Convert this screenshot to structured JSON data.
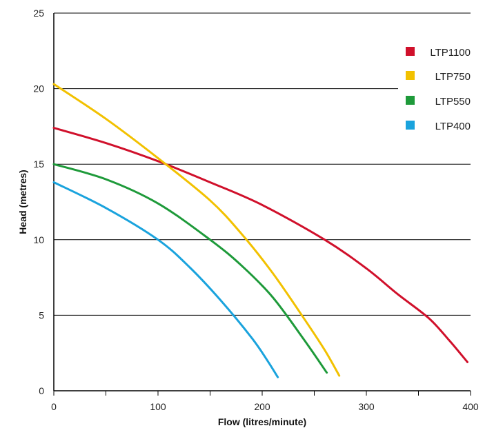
{
  "chart_data": {
    "type": "line",
    "title": "",
    "xlabel": "Flow (litres/minute)",
    "ylabel": "Head (metres)",
    "xlim": [
      0,
      400
    ],
    "ylim": [
      0,
      25
    ],
    "x_ticks": [
      0,
      100,
      200,
      300,
      400
    ],
    "x_minor_ticks": [
      50,
      150,
      250,
      350
    ],
    "y_ticks": [
      0,
      5,
      10,
      15,
      20,
      25
    ],
    "grid": "horizontal",
    "legend_position": "top-right",
    "series": [
      {
        "name": "LTP1100",
        "color": "#d0102b",
        "points": [
          [
            0,
            17.4
          ],
          [
            50,
            16.4
          ],
          [
            100,
            15.2
          ],
          [
            150,
            13.8
          ],
          [
            200,
            12.3
          ],
          [
            260,
            10.0
          ],
          [
            300,
            8.1
          ],
          [
            330,
            6.4
          ],
          [
            360,
            4.8
          ],
          [
            380,
            3.3
          ],
          [
            397,
            1.9
          ]
        ]
      },
      {
        "name": "LTP750",
        "color": "#f2c100",
        "points": [
          [
            0,
            20.3
          ],
          [
            50,
            18.0
          ],
          [
            100,
            15.4
          ],
          [
            150,
            12.6
          ],
          [
            180,
            10.4
          ],
          [
            210,
            7.8
          ],
          [
            240,
            4.8
          ],
          [
            260,
            2.7
          ],
          [
            274,
            1.0
          ]
        ]
      },
      {
        "name": "LTP550",
        "color": "#1e9a3a",
        "points": [
          [
            0,
            15.0
          ],
          [
            50,
            14.0
          ],
          [
            100,
            12.4
          ],
          [
            150,
            10.0
          ],
          [
            180,
            8.3
          ],
          [
            210,
            6.2
          ],
          [
            240,
            3.4
          ],
          [
            262,
            1.2
          ]
        ]
      },
      {
        "name": "LTP400",
        "color": "#1aa3dd",
        "points": [
          [
            0,
            13.8
          ],
          [
            50,
            12.1
          ],
          [
            100,
            10.0
          ],
          [
            130,
            8.2
          ],
          [
            160,
            6.0
          ],
          [
            190,
            3.5
          ],
          [
            205,
            2.0
          ],
          [
            215,
            0.9
          ]
        ]
      }
    ]
  }
}
